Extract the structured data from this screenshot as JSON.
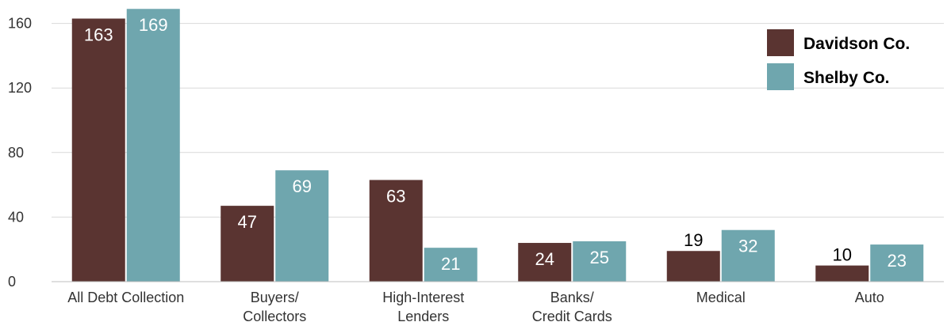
{
  "chart_data": {
    "type": "bar",
    "categories": [
      [
        "All Debt Collection"
      ],
      [
        "Buyers/",
        "Collectors"
      ],
      [
        "High-Interest",
        "Lenders"
      ],
      [
        "Banks/",
        "Credit Cards"
      ],
      [
        "Medical"
      ],
      [
        "Auto"
      ]
    ],
    "series": [
      {
        "name": "Davidson Co.",
        "values": [
          163,
          47,
          63,
          24,
          19,
          10
        ],
        "color": "#5a3431"
      },
      {
        "name": "Shelby Co.",
        "values": [
          169,
          69,
          21,
          25,
          32,
          23
        ],
        "color": "#6fa6ae"
      }
    ],
    "yticks": [
      0,
      40,
      80,
      120,
      160
    ],
    "ylim": [
      0,
      170
    ],
    "grid": true,
    "legend": "top-right",
    "title": "",
    "xlabel": "",
    "ylabel": ""
  }
}
